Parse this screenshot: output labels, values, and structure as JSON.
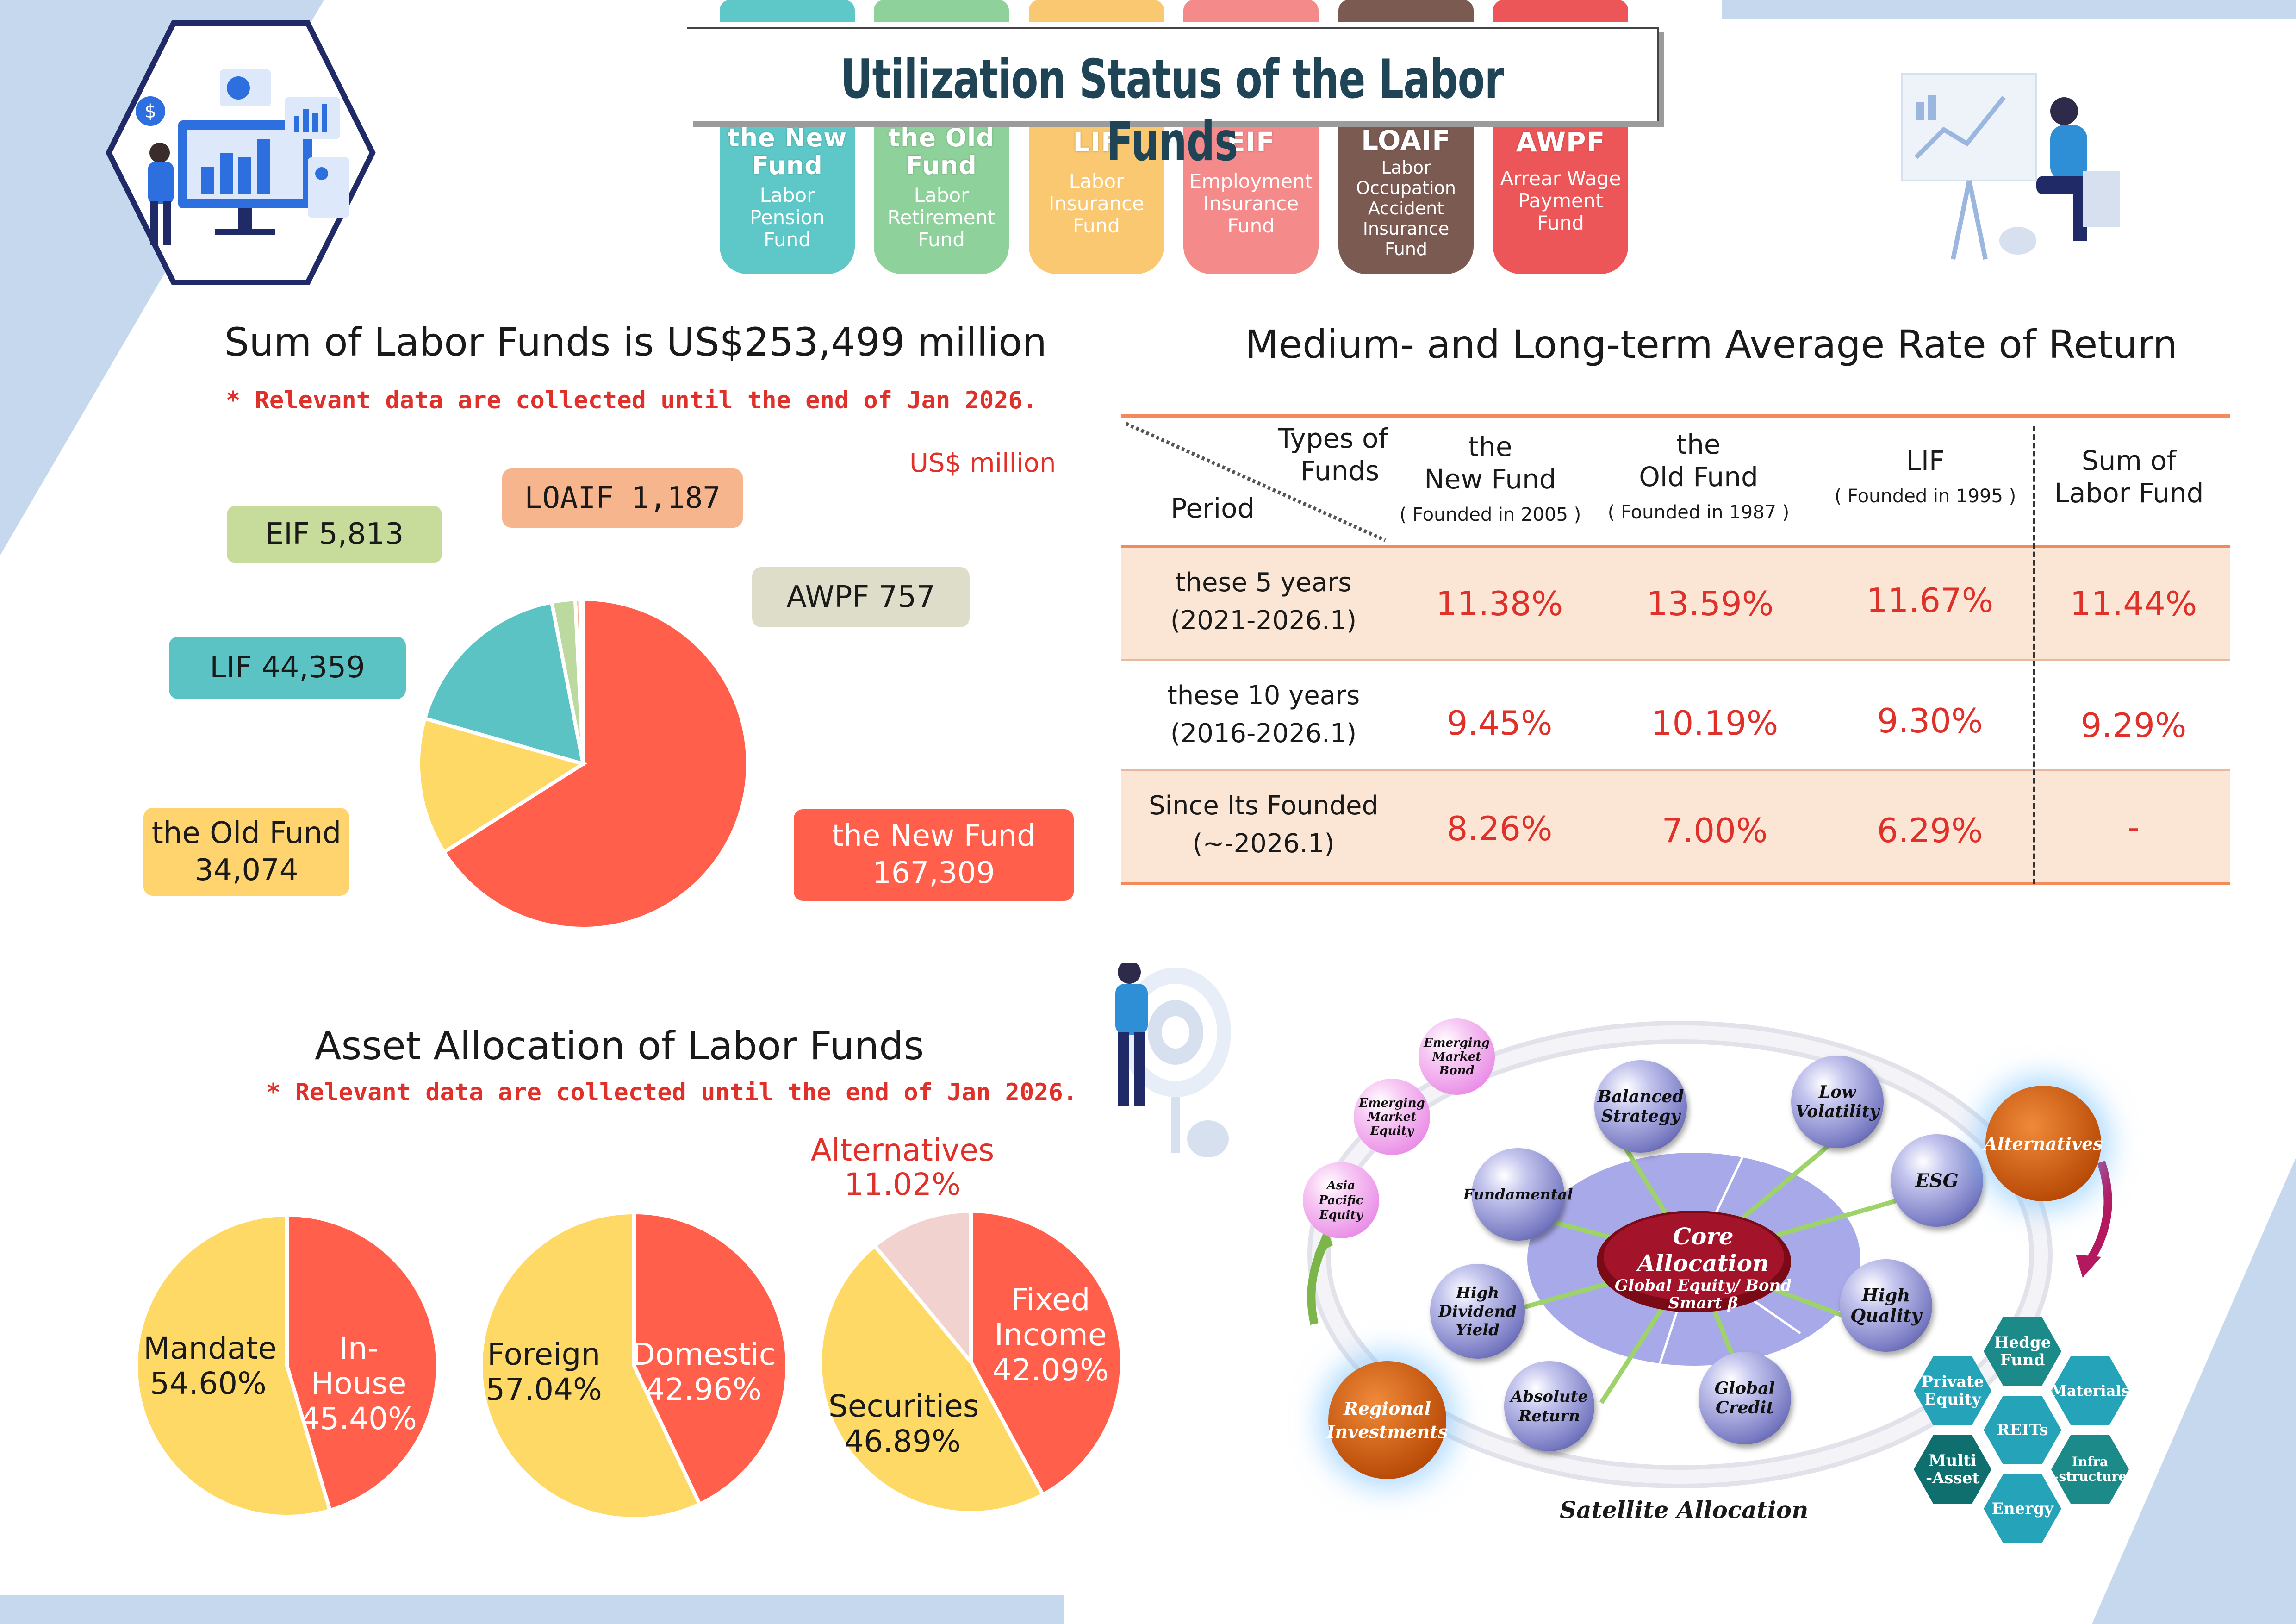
{
  "header": {
    "title": "Utilization Status of the Labor Funds",
    "funds": [
      {
        "abbr_lines": [
          "the New",
          "Fund"
        ],
        "full_lines": [
          "Labor",
          "Pension",
          "Fund"
        ],
        "color": "#5ec8c8"
      },
      {
        "abbr_lines": [
          "the Old",
          "Fund"
        ],
        "full_lines": [
          "Labor",
          "Retirement",
          "Fund"
        ],
        "color": "#8ed19a"
      },
      {
        "abbr_lines": [
          "LIF"
        ],
        "full_lines": [
          "Labor",
          "Insurance",
          "Fund"
        ],
        "color": "#f9c870"
      },
      {
        "abbr_lines": [
          "EIF"
        ],
        "full_lines": [
          "Employment",
          "Insurance",
          "Fund"
        ],
        "color": "#f58a8a"
      },
      {
        "abbr_lines": [
          "LOAIF"
        ],
        "full_lines": [
          "Labor",
          "Occupation",
          "Accident",
          "Insurance",
          "Fund"
        ],
        "color": "#7b5a52"
      },
      {
        "abbr_lines": [
          "AWPF"
        ],
        "full_lines": [
          "Arrear Wage",
          "Payment",
          "Fund"
        ],
        "color": "#ec5658"
      }
    ]
  },
  "sum_section": {
    "title": "Sum of Labor Funds is US$253,499 million",
    "note": "* Relevant data are collected until the end of Jan 2026.",
    "unit": "US$ million",
    "labels": {
      "new_fund": {
        "name": "the New Fund",
        "value": "167,309"
      },
      "old_fund": {
        "name": "the Old Fund",
        "value": "34,074"
      },
      "lif": "LIF 44,359",
      "eif": "EIF 5,813",
      "loaif": "LOAIF 1,187",
      "awpf": "AWPF 757"
    }
  },
  "chart_data": [
    {
      "type": "pie",
      "title": "Sum of Labor Funds is US$253,499 million",
      "unit": "US$ million",
      "categories": [
        "the New Fund",
        "the Old Fund",
        "LIF",
        "EIF",
        "LOAIF",
        "AWPF"
      ],
      "values": [
        167309,
        34074,
        44359,
        5813,
        1187,
        757
      ],
      "colors": [
        "#ff5f4b",
        "#ffd966",
        "#5bc3c4",
        "#bcd9a0",
        "#f4b08a",
        "#e0e0c8"
      ]
    },
    {
      "type": "pie",
      "title": "Asset Allocation of Labor Funds",
      "categories": [
        "In-House",
        "Mandate"
      ],
      "values": [
        45.4,
        54.6
      ],
      "colors": [
        "#ff5f4b",
        "#ffd966"
      ]
    },
    {
      "type": "pie",
      "title": "Asset Allocation of Labor Funds",
      "categories": [
        "Domestic",
        "Foreign"
      ],
      "values": [
        42.96,
        57.04
      ],
      "colors": [
        "#ff5f4b",
        "#ffd966"
      ]
    },
    {
      "type": "pie",
      "title": "Asset Allocation of Labor Funds",
      "categories": [
        "Fixed Income",
        "Securities",
        "Alternatives"
      ],
      "values": [
        42.09,
        46.89,
        11.02
      ],
      "colors": [
        "#ff5f4b",
        "#ffd966",
        "#f2d2cf"
      ]
    }
  ],
  "returns_table": {
    "title": "Medium- and Long-term Average Rate of Return",
    "corner_top": [
      "Types of",
      "Funds"
    ],
    "corner_bottom": "Period",
    "columns": [
      {
        "name_lines": [
          "the",
          "New Fund"
        ],
        "sub": "( Founded in 2005 )"
      },
      {
        "name_lines": [
          "the",
          "Old Fund"
        ],
        "sub": "( Founded in 1987 )"
      },
      {
        "name_lines": [
          "LIF"
        ],
        "sub": "( Founded in 1995 )"
      },
      {
        "name_lines": [
          "Sum of",
          "Labor Fund"
        ],
        "sub": ""
      }
    ],
    "rows": [
      {
        "period_lines": [
          "these 5 years",
          "(2021-2026.1)"
        ],
        "values": [
          "11.38%",
          "13.59%",
          "11.67%",
          "11.44%"
        ]
      },
      {
        "period_lines": [
          "these 10 years",
          "(2016-2026.1)"
        ],
        "values": [
          "9.45%",
          "10.19%",
          "9.30%",
          "9.29%"
        ]
      },
      {
        "period_lines": [
          "Since Its Founded",
          "(~-2026.1)"
        ],
        "values": [
          "8.26%",
          "7.00%",
          "6.29%",
          "-"
        ]
      }
    ]
  },
  "allocation_section": {
    "title": "Asset Allocation of Labor Funds",
    "note": "* Relevant data are collected until the end of Jan 2026.",
    "pie1": {
      "a_name": "Mandate",
      "a_val": "54.60%",
      "b_name": "In-House",
      "b_val": "45.40%"
    },
    "pie2": {
      "a_name": "Foreign",
      "a_val": "57.04%",
      "b_name": "Domestic",
      "b_val": "42.96%"
    },
    "pie3": {
      "alt_name": "Alternatives",
      "alt_val": "11.02%",
      "sec_name": "Securities",
      "sec_val": "46.89%",
      "fi_name_lines": [
        "Fixed",
        "Income"
      ],
      "fi_val": "42.09%"
    }
  },
  "diagram": {
    "core_title": "Core Allocation",
    "core_sub_lines": [
      "Global Equity/ Bond",
      "Smart β"
    ],
    "satellite_label": "Satellite Allocation",
    "core_items": [
      {
        "lines": [
          "Balanced",
          "Strategy"
        ]
      },
      {
        "lines": [
          "Low",
          "Volatility"
        ]
      },
      {
        "lines": [
          "ESG"
        ]
      },
      {
        "lines": [
          "High",
          "Quality"
        ]
      },
      {
        "lines": [
          "Global",
          "Credit"
        ]
      },
      {
        "lines": [
          "Absolute",
          "Return"
        ]
      },
      {
        "lines": [
          "High",
          "Dividend",
          "Yield"
        ]
      },
      {
        "lines": [
          "Fundamental"
        ]
      }
    ],
    "regional_items": [
      {
        "lines": [
          "Emerging",
          "Market Bond"
        ]
      },
      {
        "lines": [
          "Emerging",
          "Market Equity"
        ]
      },
      {
        "lines": [
          "Asia Pacific",
          "Equity"
        ]
      }
    ],
    "regional_label_lines": [
      "Regional",
      "Investments"
    ],
    "alternatives_label": "Alternatives",
    "alt_items": [
      {
        "lines": [
          "Hedge",
          "Fund"
        ]
      },
      {
        "lines": [
          "Private",
          "Equity"
        ]
      },
      {
        "lines": [
          "Materials"
        ]
      },
      {
        "lines": [
          "REITs"
        ]
      },
      {
        "lines": [
          "Multi",
          "-Asset"
        ]
      },
      {
        "lines": [
          "Infra",
          "-structure"
        ]
      },
      {
        "lines": [
          "Energy"
        ]
      }
    ]
  }
}
